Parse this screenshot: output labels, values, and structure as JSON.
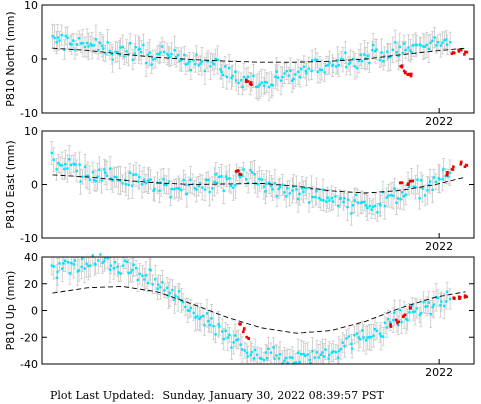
{
  "footer": {
    "label": "Plot Last Updated:",
    "value": "Sunday, January 30, 2022 08:39:57 PST"
  },
  "style": {
    "cyan": "#00e5ff",
    "red": "#ee0000",
    "errorbar": "#c8c8c8",
    "model": "#000000"
  },
  "chart_data": [
    {
      "type": "scatter",
      "ylabel": "P810 North (mm)",
      "x_range": [
        2016.3,
        2022.5
      ],
      "ylim": [
        -10,
        10
      ],
      "y_ticks": [
        10,
        0,
        -10
      ],
      "x_tick_labels": [
        {
          "x": 2022.0,
          "label": "2022"
        }
      ],
      "series": [
        {
          "role": "observed",
          "color": "#00e5ff",
          "x": [
            2016.45,
            2016.7,
            2016.95,
            2017.2,
            2017.45,
            2017.7,
            2017.95,
            2018.2,
            2018.45,
            2018.7,
            2018.95,
            2019.2,
            2019.45,
            2019.7,
            2019.95,
            2020.2,
            2020.45,
            2020.7,
            2020.95,
            2021.2,
            2021.45,
            2021.7,
            2021.95,
            2022.15
          ],
          "y": [
            3.5,
            3.0,
            2.5,
            2.0,
            1.5,
            1.0,
            0.6,
            0.2,
            -0.2,
            -0.6,
            -2.5,
            -4.0,
            -4.6,
            -3.8,
            -2.8,
            -1.8,
            -0.8,
            0.0,
            0.5,
            1.2,
            1.6,
            2.2,
            2.8,
            3.3
          ]
        },
        {
          "role": "observed-outlier",
          "color": "#ee0000",
          "x": [
            2019.25,
            2019.3,
            2021.45,
            2021.5,
            2021.55,
            2021.6,
            2022.2,
            2022.3,
            2022.38
          ],
          "y": [
            -4.0,
            -4.5,
            -1.5,
            -2.3,
            -2.8,
            -3.0,
            1.0,
            1.6,
            1.3
          ]
        },
        {
          "role": "model",
          "color": "#000000",
          "x": [
            2016.45,
            2016.95,
            2017.45,
            2017.95,
            2018.45,
            2018.95,
            2019.45,
            2019.95,
            2020.45,
            2020.95,
            2021.45,
            2021.95,
            2022.38
          ],
          "y": [
            2.0,
            1.6,
            0.9,
            0.3,
            -0.1,
            -0.4,
            -0.6,
            -0.6,
            -0.4,
            0.0,
            0.8,
            1.5,
            2.0
          ]
        }
      ]
    },
    {
      "type": "scatter",
      "ylabel": "P810 East (mm)",
      "x_range": [
        2016.3,
        2022.5
      ],
      "ylim": [
        -10,
        10
      ],
      "y_ticks": [
        10,
        0,
        -10
      ],
      "x_tick_labels": [
        {
          "x": 2022.0,
          "label": "2022"
        }
      ],
      "series": [
        {
          "role": "observed",
          "color": "#00e5ff",
          "x": [
            2016.45,
            2016.7,
            2016.95,
            2017.2,
            2017.45,
            2017.7,
            2017.95,
            2018.2,
            2018.45,
            2018.7,
            2018.95,
            2019.2,
            2019.45,
            2019.7,
            2019.95,
            2020.2,
            2020.45,
            2020.7,
            2020.95,
            2021.2,
            2021.45,
            2021.7,
            2021.95,
            2022.15
          ],
          "y": [
            4.5,
            3.5,
            2.4,
            1.5,
            1.0,
            0.4,
            0.0,
            -0.6,
            -0.3,
            0.2,
            0.6,
            1.5,
            0.5,
            -0.5,
            -1.2,
            -2.0,
            -2.8,
            -3.6,
            -4.0,
            -3.2,
            -1.6,
            -0.6,
            0.4,
            1.8
          ]
        },
        {
          "role": "observed-outlier",
          "color": "#ee0000",
          "x": [
            2019.1,
            2019.15,
            2021.45,
            2021.55,
            2021.6,
            2022.1,
            2022.2,
            2022.3,
            2022.38
          ],
          "y": [
            2.5,
            1.8,
            0.5,
            0.0,
            0.8,
            2.0,
            3.0,
            4.0,
            3.5
          ]
        },
        {
          "role": "model",
          "color": "#000000",
          "x": [
            2016.45,
            2016.95,
            2017.45,
            2017.95,
            2018.45,
            2018.95,
            2019.45,
            2019.95,
            2020.45,
            2020.95,
            2021.45,
            2021.95,
            2022.38
          ],
          "y": [
            1.8,
            1.4,
            0.8,
            0.3,
            0.0,
            0.1,
            0.2,
            -0.3,
            -1.2,
            -1.6,
            -1.1,
            0.0,
            1.4
          ]
        }
      ]
    },
    {
      "type": "scatter",
      "ylabel": "P810 Up (mm)",
      "x_range": [
        2016.3,
        2022.5
      ],
      "ylim": [
        -40,
        40
      ],
      "y_ticks": [
        40,
        20,
        0,
        -20,
        -40
      ],
      "x_tick_labels": [
        {
          "x": 2022.0,
          "label": "2022"
        }
      ],
      "series": [
        {
          "role": "observed",
          "color": "#00e5ff",
          "x": [
            2016.45,
            2016.7,
            2016.95,
            2017.2,
            2017.45,
            2017.7,
            2017.95,
            2018.2,
            2018.45,
            2018.7,
            2018.95,
            2019.2,
            2019.45,
            2019.7,
            2019.95,
            2020.2,
            2020.45,
            2020.7,
            2020.95,
            2021.2,
            2021.45,
            2021.7,
            2021.95,
            2022.15
          ],
          "y": [
            30,
            33,
            35,
            35,
            32,
            27,
            20,
            10,
            0,
            -10,
            -20,
            -28,
            -33,
            -35,
            -35,
            -33,
            -30,
            -25,
            -20,
            -12,
            -6,
            0,
            5,
            9
          ]
        },
        {
          "role": "observed-outlier",
          "color": "#ee0000",
          "x": [
            2019.15,
            2019.2,
            2019.25,
            2021.3,
            2021.4,
            2021.5,
            2021.6,
            2022.2,
            2022.3,
            2022.38
          ],
          "y": [
            -10,
            -15,
            -20,
            -12,
            -8,
            -4,
            2,
            8,
            10,
            10
          ]
        },
        {
          "role": "model",
          "color": "#000000",
          "x": [
            2016.45,
            2016.95,
            2017.45,
            2017.95,
            2018.45,
            2018.95,
            2019.45,
            2019.95,
            2020.45,
            2020.95,
            2021.45,
            2021.95,
            2022.38
          ],
          "y": [
            13,
            17,
            18,
            14,
            5,
            -5,
            -13,
            -17,
            -15,
            -8,
            2,
            10,
            14
          ]
        }
      ]
    }
  ]
}
